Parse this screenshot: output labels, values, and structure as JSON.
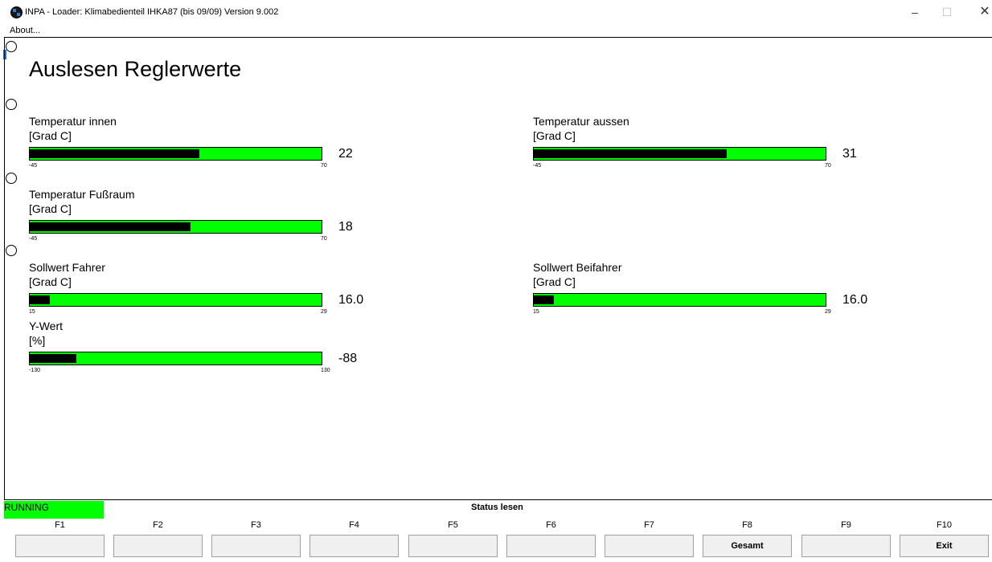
{
  "window": {
    "title": "INPA - Loader:  Klimabedienteil IHKA87 (bis 09/09) Version 9.002",
    "menu_about": "About...",
    "min_glyph": "–",
    "max_glyph": "☐",
    "close_glyph": "✕",
    "app_icon": "bmw-logo-icon"
  },
  "page_title": "Auslesen Reglerwerte",
  "gauges": [
    {
      "label": "Temperatur innen",
      "unit": "[Grad C]",
      "min": "-45",
      "max": "70",
      "value": "22",
      "fill_fraction": 0.58
    },
    {
      "label": "Temperatur aussen",
      "unit": "[Grad C]",
      "min": "-45",
      "max": "70",
      "value": "31",
      "fill_fraction": 0.66
    },
    {
      "label": "Temperatur Fußraum",
      "unit": "[Grad C]",
      "min": "-45",
      "max": "70",
      "value": "18",
      "fill_fraction": 0.55
    },
    {
      "label": "Sollwert Fahrer",
      "unit": "[Grad C]",
      "min": "15",
      "max": "29",
      "value": "16.0",
      "fill_fraction": 0.07
    },
    {
      "label": "Sollwert Beifahrer",
      "unit": "[Grad C]",
      "min": "15",
      "max": "29",
      "value": "16.0",
      "fill_fraction": 0.07
    },
    {
      "label": "Y-Wert",
      "unit": "[%]",
      "min": "-130",
      "max": "130",
      "value": "-88",
      "fill_fraction": 0.16
    }
  ],
  "status": {
    "state": "RUNNING",
    "text": "Status lesen",
    "state_color": "#00ff00"
  },
  "fkeys": [
    {
      "key": "F1",
      "label": ""
    },
    {
      "key": "F2",
      "label": ""
    },
    {
      "key": "F3",
      "label": ""
    },
    {
      "key": "F4",
      "label": ""
    },
    {
      "key": "F5",
      "label": ""
    },
    {
      "key": "F6",
      "label": ""
    },
    {
      "key": "F7",
      "label": ""
    },
    {
      "key": "F8",
      "label": "Gesamt"
    },
    {
      "key": "F9",
      "label": ""
    },
    {
      "key": "F10",
      "label": "Exit"
    }
  ]
}
